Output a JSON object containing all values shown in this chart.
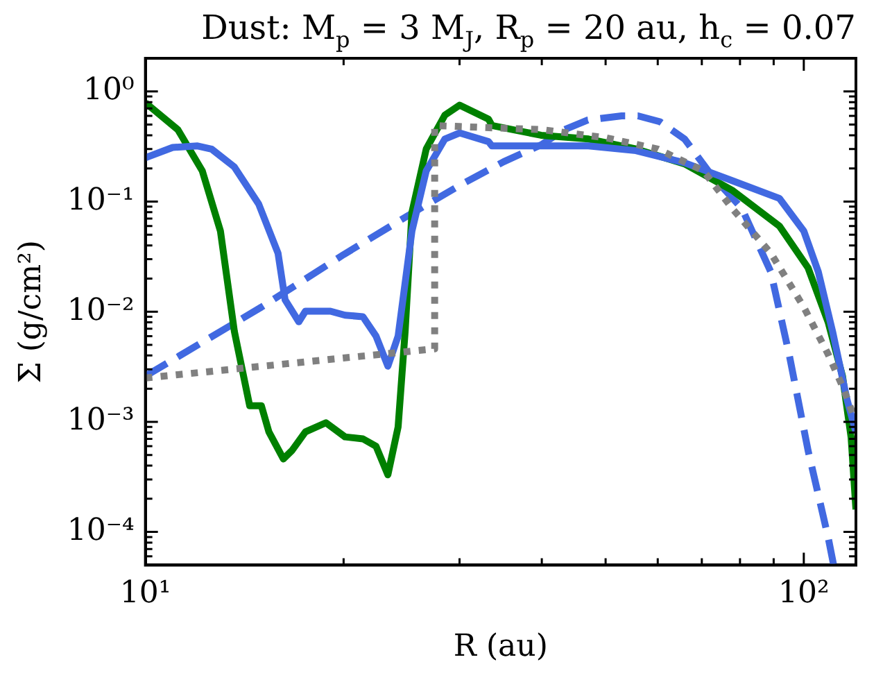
{
  "chart_data": {
    "type": "line",
    "title": "Dust: M$_{p}$ = 3 M$_{J}$,  R$_{p}$ = 20 au,  h$_{c}$ = 0.07",
    "xlabel": "R (au)",
    "ylabel": "Σ (g/cm²)",
    "log": "xy",
    "grid": false,
    "legend": false,
    "marker": "none",
    "xlim": [
      10,
      120
    ],
    "ylim": [
      5e-05,
      2
    ],
    "xticks": [
      {
        "value": 10,
        "label": "10¹"
      },
      {
        "value": 20,
        "label": null
      },
      {
        "value": 30,
        "label": null
      },
      {
        "value": 40,
        "label": null
      },
      {
        "value": 50,
        "label": null
      },
      {
        "value": 60,
        "label": null
      },
      {
        "value": 70,
        "label": null
      },
      {
        "value": 80,
        "label": null
      },
      {
        "value": 90,
        "label": null
      },
      {
        "value": 100,
        "label": "10²"
      }
    ],
    "yticks": [
      {
        "value": 6e-05,
        "label": null
      },
      {
        "value": 7e-05,
        "label": null
      },
      {
        "value": 8e-05,
        "label": null
      },
      {
        "value": 9e-05,
        "label": null
      },
      {
        "value": 0.0001,
        "label": "10⁻⁴"
      },
      {
        "value": 0.0002,
        "label": null
      },
      {
        "value": 0.0003,
        "label": null
      },
      {
        "value": 0.0004,
        "label": null
      },
      {
        "value": 0.0005,
        "label": null
      },
      {
        "value": 0.0006,
        "label": null
      },
      {
        "value": 0.0007,
        "label": null
      },
      {
        "value": 0.0008,
        "label": null
      },
      {
        "value": 0.0009,
        "label": null
      },
      {
        "value": 0.001,
        "label": "10⁻³"
      },
      {
        "value": 0.002,
        "label": null
      },
      {
        "value": 0.003,
        "label": null
      },
      {
        "value": 0.004,
        "label": null
      },
      {
        "value": 0.005,
        "label": null
      },
      {
        "value": 0.006,
        "label": null
      },
      {
        "value": 0.007,
        "label": null
      },
      {
        "value": 0.008,
        "label": null
      },
      {
        "value": 0.009,
        "label": null
      },
      {
        "value": 0.01,
        "label": "10⁻²"
      },
      {
        "value": 0.02,
        "label": null
      },
      {
        "value": 0.03,
        "label": null
      },
      {
        "value": 0.04,
        "label": null
      },
      {
        "value": 0.05,
        "label": null
      },
      {
        "value": 0.06,
        "label": null
      },
      {
        "value": 0.07,
        "label": null
      },
      {
        "value": 0.08,
        "label": null
      },
      {
        "value": 0.09,
        "label": null
      },
      {
        "value": 0.1,
        "label": "10⁻¹"
      },
      {
        "value": 0.2,
        "label": null
      },
      {
        "value": 0.3,
        "label": null
      },
      {
        "value": 0.4,
        "label": null
      },
      {
        "value": 0.5,
        "label": null
      },
      {
        "value": 0.6,
        "label": null
      },
      {
        "value": 0.7,
        "label": null
      },
      {
        "value": 0.8,
        "label": null
      },
      {
        "value": 0.9,
        "label": null
      },
      {
        "value": 1,
        "label": "10⁰"
      },
      {
        "value": 2,
        "label": null
      }
    ],
    "series": [
      {
        "color": "#808080",
        "line_style": "dotted",
        "x": [
          10,
          27.5,
          27.5,
          30,
          40,
          50,
          60,
          70.4,
          77.8,
          89.1,
          100,
          108.9,
          114.5,
          120
        ],
        "values": [
          0.0025,
          0.0046,
          0.49,
          0.48,
          0.45,
          0.38,
          0.3,
          0.19,
          0.087,
          0.034,
          0.011,
          0.0041,
          0.0021,
          0.001
        ]
      },
      {
        "color": "#4169e1",
        "line_style": "solid",
        "x": [
          10,
          11,
          12,
          12.6,
          13.65,
          14.86,
          15.9,
          16.3,
          17.1,
          17.5,
          19.1,
          20.1,
          21.4,
          22.4,
          23.35,
          24.2,
          25.4,
          26.7,
          28.5,
          30,
          33.2,
          33.6,
          39.9,
          47.1,
          55.6,
          65.9,
          77.8,
          91.8,
          100,
          105.2,
          110.6,
          116.3,
          120
        ],
        "values": [
          0.25,
          0.31,
          0.32,
          0.3,
          0.206,
          0.095,
          0.034,
          0.0128,
          0.0081,
          0.0101,
          0.0101,
          0.0093,
          0.009,
          0.006,
          0.0032,
          0.006,
          0.054,
          0.19,
          0.37,
          0.42,
          0.35,
          0.32,
          0.32,
          0.32,
          0.29,
          0.225,
          0.155,
          0.107,
          0.054,
          0.023,
          0.0066,
          0.0016,
          0.0008
        ]
      },
      {
        "color": "#008000",
        "line_style": "solid",
        "x": [
          10,
          11.2,
          12.2,
          13,
          13.65,
          14.4,
          15,
          15.4,
          16.2,
          16.7,
          17.5,
          18.8,
          20.1,
          21.4,
          22.4,
          23.35,
          24.2,
          24.8,
          25.4,
          26.7,
          28.5,
          30,
          33.2,
          33.6,
          39.9,
          47.1,
          55.6,
          65.9,
          77.8,
          91.8,
          101.5,
          108.9,
          114.5,
          118,
          120
        ],
        "values": [
          0.79,
          0.45,
          0.19,
          0.054,
          0.0066,
          0.0014,
          0.0014,
          0.00081,
          0.00046,
          0.00055,
          0.00081,
          0.00098,
          0.00073,
          0.0007,
          0.0006,
          0.00033,
          0.0009,
          0.0066,
          0.08,
          0.3,
          0.61,
          0.75,
          0.56,
          0.49,
          0.4,
          0.37,
          0.3,
          0.22,
          0.127,
          0.06,
          0.025,
          0.008,
          0.0026,
          0.00072,
          0.00016
        ]
      },
      {
        "color": "#4169e1",
        "line_style": "dashed",
        "x": [
          10,
          15,
          20,
          25,
          30,
          35,
          40,
          43.3,
          47,
          52.9,
          56,
          60.5,
          65.9,
          72.6,
          80.5,
          89.1,
          95,
          101.5,
          108.9,
          111
        ],
        "values": [
          0.0026,
          0.011,
          0.033,
          0.074,
          0.14,
          0.23,
          0.33,
          0.45,
          0.55,
          0.6,
          0.6,
          0.53,
          0.37,
          0.17,
          0.087,
          0.023,
          0.0041,
          0.00055,
          8.9e-05,
          5e-05
        ]
      }
    ]
  }
}
